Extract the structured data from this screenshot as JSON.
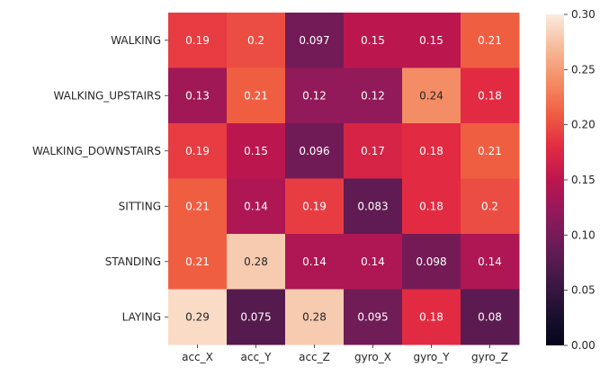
{
  "chart_data": {
    "type": "heatmap",
    "rows": [
      "WALKING",
      "WALKING_UPSTAIRS",
      "WALKING_DOWNSTAIRS",
      "SITTING",
      "STANDING",
      "LAYING"
    ],
    "columns": [
      "acc_X",
      "acc_Y",
      "acc_Z",
      "gyro_X",
      "gyro_Y",
      "gyro_Z"
    ],
    "values": [
      [
        0.19,
        0.2,
        0.097,
        0.15,
        0.15,
        0.21
      ],
      [
        0.13,
        0.21,
        0.12,
        0.12,
        0.24,
        0.18
      ],
      [
        0.19,
        0.15,
        0.096,
        0.17,
        0.18,
        0.21
      ],
      [
        0.21,
        0.14,
        0.19,
        0.083,
        0.18,
        0.2
      ],
      [
        0.21,
        0.28,
        0.14,
        0.14,
        0.098,
        0.14
      ],
      [
        0.29,
        0.075,
        0.28,
        0.095,
        0.18,
        0.08
      ]
    ],
    "annotations": [
      [
        "0.19",
        "0.2",
        "0.097",
        "0.15",
        "0.15",
        "0.21"
      ],
      [
        "0.13",
        "0.21",
        "0.12",
        "0.12",
        "0.24",
        "0.18"
      ],
      [
        "0.19",
        "0.15",
        "0.096",
        "0.17",
        "0.18",
        "0.21"
      ],
      [
        "0.21",
        "0.14",
        "0.19",
        "0.083",
        "0.18",
        "0.2"
      ],
      [
        "0.21",
        "0.28",
        "0.14",
        "0.14",
        "0.098",
        "0.14"
      ],
      [
        "0.29",
        "0.075",
        "0.28",
        "0.095",
        "0.18",
        "0.08"
      ]
    ],
    "colorbar": {
      "range": [
        0,
        0.3
      ],
      "ticks": [
        "0.00",
        "0.05",
        "0.10",
        "0.15",
        "0.20",
        "0.25",
        "0.30"
      ],
      "colormap": "rocket"
    },
    "title": "",
    "xlabel": "",
    "ylabel": ""
  }
}
